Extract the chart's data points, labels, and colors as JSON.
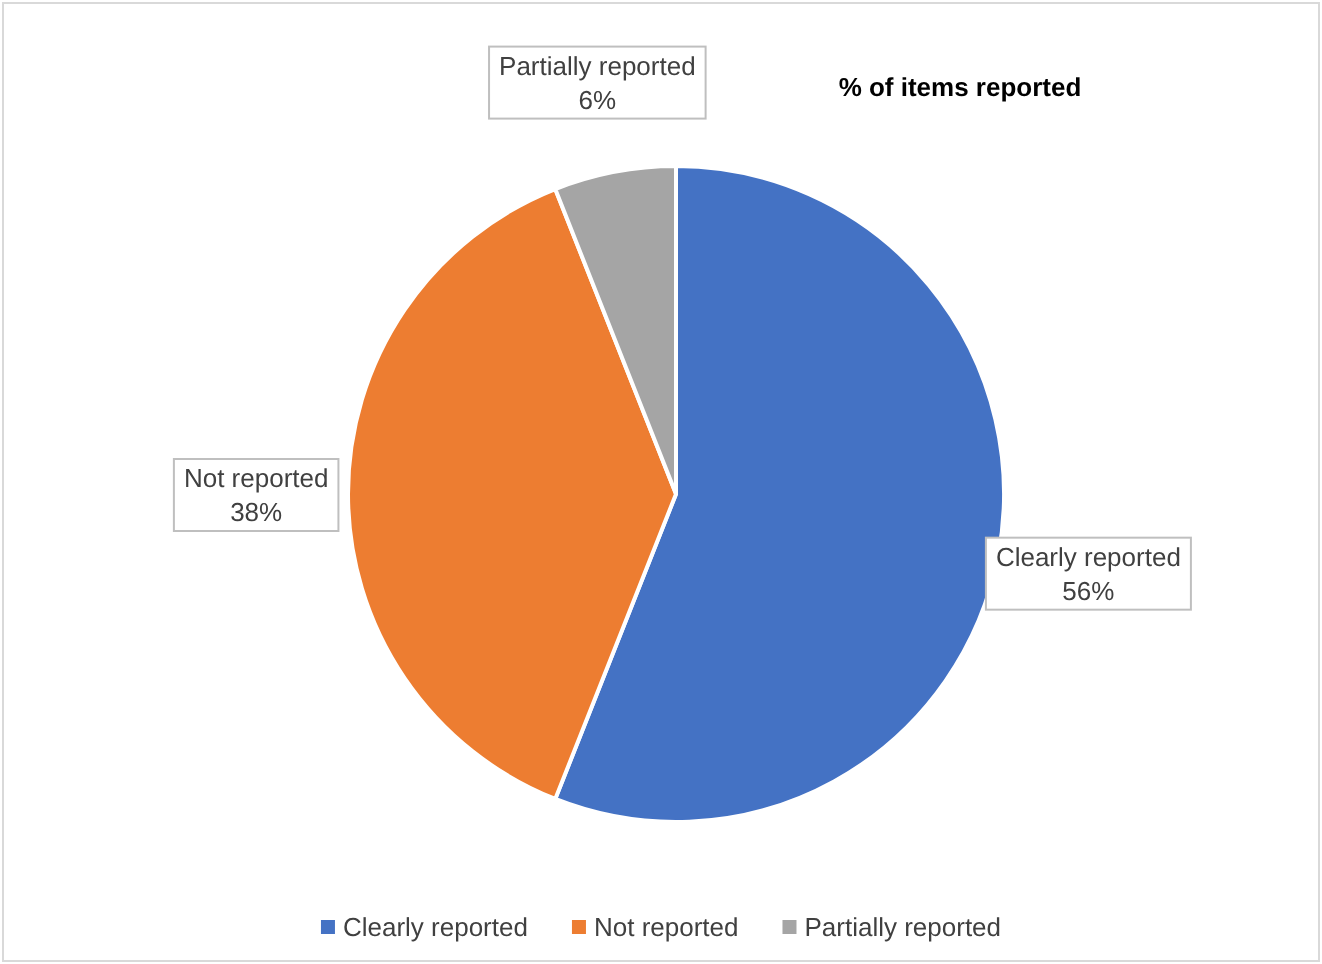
{
  "chart_data": {
    "type": "pie",
    "title": "% of items reported",
    "categories": [
      "Clearly reported",
      "Not reported",
      "Partially reported"
    ],
    "values": [
      56,
      38,
      6
    ],
    "colors": [
      "#4472c4",
      "#ed7d31",
      "#a5a5a5"
    ],
    "value_labels": [
      "56%",
      "38%",
      "6%"
    ],
    "legend": "bottom"
  }
}
